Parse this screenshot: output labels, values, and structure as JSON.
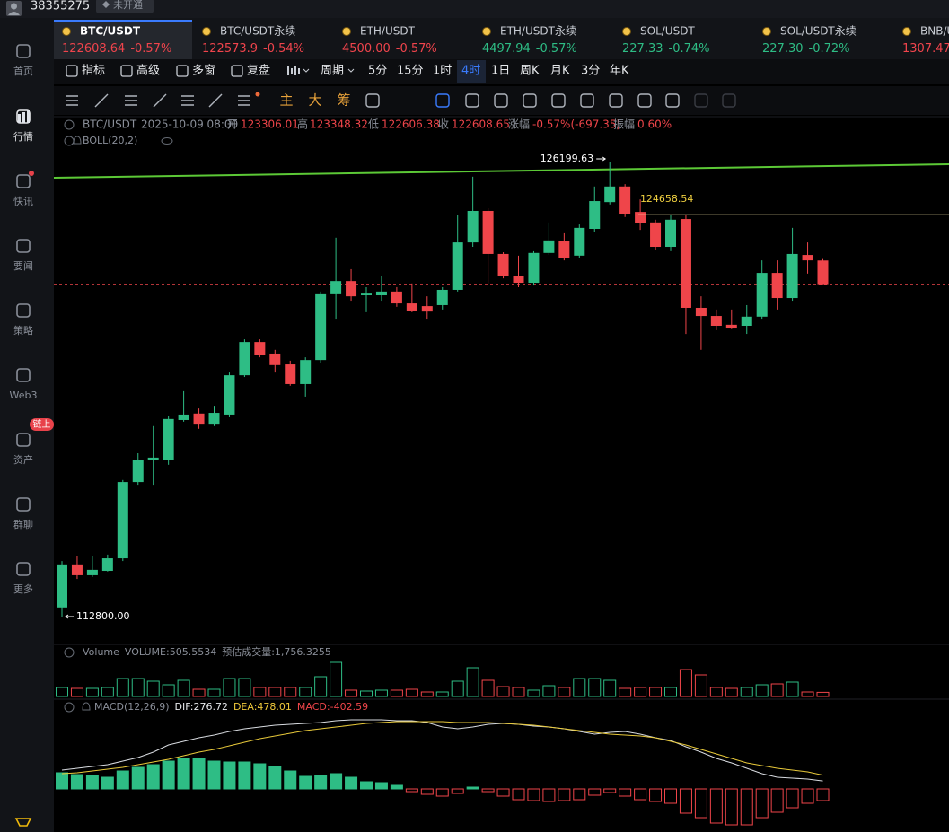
{
  "account": {
    "id": "38355275",
    "badge": "未开通"
  },
  "sidebar": [
    {
      "label": "首页"
    },
    {
      "label": "行情"
    },
    {
      "label": "快讯"
    },
    {
      "label": "要闻"
    },
    {
      "label": "策略"
    },
    {
      "label": "Web3"
    },
    {
      "label": "资产",
      "badge": "链上"
    },
    {
      "label": "群聊"
    },
    {
      "label": "更多"
    }
  ],
  "sidebar_active": 1,
  "tickers": [
    {
      "symbol": "BTC/USDT",
      "price": "122608.64",
      "change": "-0.57%",
      "color": "#f0444c"
    },
    {
      "symbol": "BTC/USDT永续",
      "price": "122573.9",
      "change": "-0.54%",
      "color": "#f0444c"
    },
    {
      "symbol": "ETH/USDT",
      "price": "4500.00",
      "change": "-0.57%",
      "color": "#f0444c"
    },
    {
      "symbol": "ETH/USDT永续",
      "price": "4497.94",
      "change": "-0.57%",
      "color": "#2ebd85"
    },
    {
      "symbol": "SOL/USDT",
      "price": "227.33",
      "change": "-0.74%",
      "color": "#2ebd85"
    },
    {
      "symbol": "SOL/USDT永续",
      "price": "227.30",
      "change": "-0.72%",
      "color": "#2ebd85"
    },
    {
      "symbol": "BNB/USDT",
      "price": "1307.47",
      "color": "#f0444c"
    }
  ],
  "ticker_active": 0,
  "toolbar": {
    "items": [
      "指标",
      "高级",
      "多窗",
      "复盘"
    ],
    "period_label": "周期",
    "periods": [
      "5分",
      "15分",
      "1时",
      "4时",
      "1日",
      "周K",
      "月K",
      "3分",
      "年K"
    ],
    "active_period": 3
  },
  "drawing_tools": [
    "主",
    "大",
    "筹"
  ],
  "kline": {
    "symbol": "BTC/USDT",
    "time": "2025-10-09 08:00",
    "labels": {
      "open": "开",
      "high": "高",
      "low": "低",
      "close": "收",
      "change": "涨幅",
      "amplitude": "振幅"
    },
    "change": "-0.57%(-697.35)",
    "amplitude": "0.60%",
    "indicator": "BOLL(20,2)",
    "low_label": "112800.00",
    "up_color": "#2ebd85",
    "down_color": "#ef454a",
    "candles": [
      [
        113070,
        114440,
        112800,
        114340
      ],
      [
        114340,
        114580,
        113910,
        114020
      ],
      [
        114020,
        114580,
        113970,
        114180
      ],
      [
        114150,
        114630,
        114130,
        114520
      ],
      [
        114520,
        116830,
        114440,
        116770
      ],
      [
        116770,
        117620,
        116690,
        117430
      ],
      [
        117430,
        118420,
        116690,
        117490
      ],
      [
        117430,
        118710,
        117280,
        118630
      ],
      [
        118600,
        119450,
        118550,
        118760
      ],
      [
        118790,
        118940,
        118340,
        118490
      ],
      [
        118490,
        119020,
        118420,
        118810
      ],
      [
        118760,
        120000,
        118680,
        119920
      ],
      [
        119920,
        120980,
        119870,
        120900
      ],
      [
        120900,
        120980,
        120450,
        120530
      ],
      [
        120560,
        120670,
        120000,
        120220
      ],
      [
        120240,
        120350,
        119610,
        119660
      ],
      [
        119660,
        120450,
        119290,
        120370
      ],
      [
        120370,
        122390,
        120270,
        122310
      ],
      [
        122310,
        123980,
        121590,
        122700
      ],
      [
        122700,
        123050,
        122120,
        122250
      ],
      [
        122280,
        122520,
        121780,
        122330
      ],
      [
        122280,
        122840,
        122120,
        122390
      ],
      [
        122390,
        122520,
        121940,
        122040
      ],
      [
        122040,
        122630,
        121780,
        121830
      ],
      [
        121960,
        122250,
        121590,
        121800
      ],
      [
        121990,
        122520,
        121860,
        122440
      ],
      [
        122440,
        124640,
        122390,
        123840
      ],
      [
        123840,
        125780,
        123710,
        124770
      ],
      [
        124770,
        124850,
        122630,
        123500
      ],
      [
        123500,
        123550,
        122780,
        122860
      ],
      [
        122860,
        123450,
        122520,
        122650
      ],
      [
        122650,
        123580,
        122570,
        123530
      ],
      [
        123530,
        124430,
        123470,
        123900
      ],
      [
        123870,
        124110,
        123310,
        123390
      ],
      [
        123450,
        124370,
        123370,
        124270
      ],
      [
        124240,
        125490,
        124160,
        125060
      ],
      [
        125030,
        126199.63,
        124960,
        125490
      ],
      [
        125490,
        125560,
        124590,
        124690
      ],
      [
        124740,
        125110,
        124210,
        124400
      ],
      [
        124430,
        124510,
        123630,
        123710
      ],
      [
        123710,
        124640,
        123580,
        124510
      ],
      [
        124530,
        124658.54,
        121140,
        121910
      ],
      [
        121910,
        122250,
        120670,
        121670
      ],
      [
        121670,
        121860,
        121250,
        121380
      ],
      [
        121410,
        121860,
        121280,
        121300
      ],
      [
        121380,
        121990,
        121140,
        121650
      ],
      [
        121650,
        123310,
        121590,
        122940
      ],
      [
        122940,
        123310,
        121860,
        122200
      ],
      [
        122200,
        124270,
        122120,
        123500
      ],
      [
        123470,
        123840,
        122920,
        123310
      ],
      [
        123306.01,
        123348.32,
        122606.38,
        122608.65
      ]
    ]
  },
  "volume": {
    "title": "Volume",
    "label": "VOLUME:",
    "estimate_label": "预估成交量:",
    "estimate": "1,756.3255",
    "values": [
      1100,
      990,
      990,
      1100,
      2200,
      2200,
      1870,
      1430,
      1980,
      880,
      880,
      2200,
      2200,
      1100,
      1100,
      1100,
      1100,
      2420,
      4180,
      770,
      660,
      770,
      770,
      880,
      550,
      550,
      1870,
      3520,
      1980,
      1210,
      1100,
      770,
      1320,
      1100,
      2200,
      2200,
      1980,
      990,
      1100,
      1100,
      1100,
      3300,
      2640,
      1100,
      990,
      1100,
      1430,
      1540,
      1760,
      550,
      505.5534
    ]
  },
  "macd": {
    "title": "MACD(12,26,9)",
    "dif_label": "DIF:",
    "dea_label": "DEA:",
    "macd_label": "MACD:",
    "dif": [
      651,
      713,
      775,
      837,
      961,
      1085,
      1271,
      1519,
      1643,
      1767,
      1860,
      1984,
      2077,
      2139,
      2201,
      2232,
      2263,
      2294,
      2356,
      2387,
      2387,
      2387,
      2356,
      2356,
      2294,
      2139,
      2077,
      2139,
      2232,
      2263,
      2232,
      2170,
      2139,
      2077,
      1984,
      1891,
      1953,
      1984,
      1891,
      1767,
      1674,
      1457,
      1271,
      1054,
      899,
      713,
      527,
      403,
      372,
      341,
      276.72
    ],
    "dea": [
      527,
      558,
      620,
      682,
      744,
      837,
      930,
      1023,
      1147,
      1271,
      1364,
      1488,
      1612,
      1736,
      1829,
      1922,
      2015,
      2077,
      2139,
      2201,
      2263,
      2294,
      2325,
      2325,
      2325,
      2325,
      2294,
      2294,
      2294,
      2263,
      2232,
      2201,
      2139,
      2077,
      2015,
      1953,
      1891,
      1860,
      1829,
      1767,
      1643,
      1519,
      1364,
      1209,
      1054,
      899,
      806,
      713,
      651,
      589,
      478.01
    ],
    "hist": [
      558,
      496,
      465,
      403,
      620,
      744,
      837,
      961,
      1054,
      1054,
      961,
      930,
      930,
      868,
      775,
      620,
      434,
      465,
      527,
      403,
      248,
      217,
      124,
      -93,
      -186,
      -248,
      -155,
      62,
      -93,
      -248,
      -372,
      -403,
      -434,
      -403,
      -372,
      -217,
      -124,
      -248,
      -372,
      -434,
      -496,
      -837,
      -992,
      -1178,
      -1240,
      -1240,
      -992,
      -806,
      -651,
      -496,
      -402.59
    ]
  }
}
